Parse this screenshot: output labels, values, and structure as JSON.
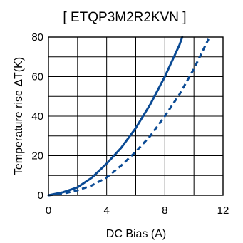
{
  "chart_data": {
    "type": "line",
    "title": "[ ETQP3M2R2KVN ]",
    "xlabel": "DC Bias (A)",
    "ylabel": "Temperature rise ΔT(K)",
    "xlim": [
      0,
      12
    ],
    "ylim": [
      0,
      80
    ],
    "xticks": [
      "0",
      "4",
      "8",
      "12"
    ],
    "yticks": [
      "0",
      "20",
      "40",
      "60",
      "80"
    ],
    "grid": true,
    "x_grid_step": 2,
    "y_grid_step": 10,
    "series": [
      {
        "style": "solid",
        "x": [
          0,
          1,
          2,
          3,
          4,
          5,
          6,
          7,
          8,
          9,
          9.2
        ],
        "y": [
          0,
          1.5,
          4,
          9,
          16,
          24,
          34,
          46,
          60,
          76,
          80
        ]
      },
      {
        "style": "dashed",
        "x": [
          0,
          1,
          2,
          3,
          4,
          5,
          6,
          7,
          8,
          9,
          10,
          11
        ],
        "y": [
          0,
          0.8,
          2.5,
          5,
          9,
          15,
          22,
          30,
          40,
          51,
          64,
          79
        ]
      }
    ],
    "colors": {
      "line": "#0a4a94",
      "grid": "#000000"
    }
  }
}
